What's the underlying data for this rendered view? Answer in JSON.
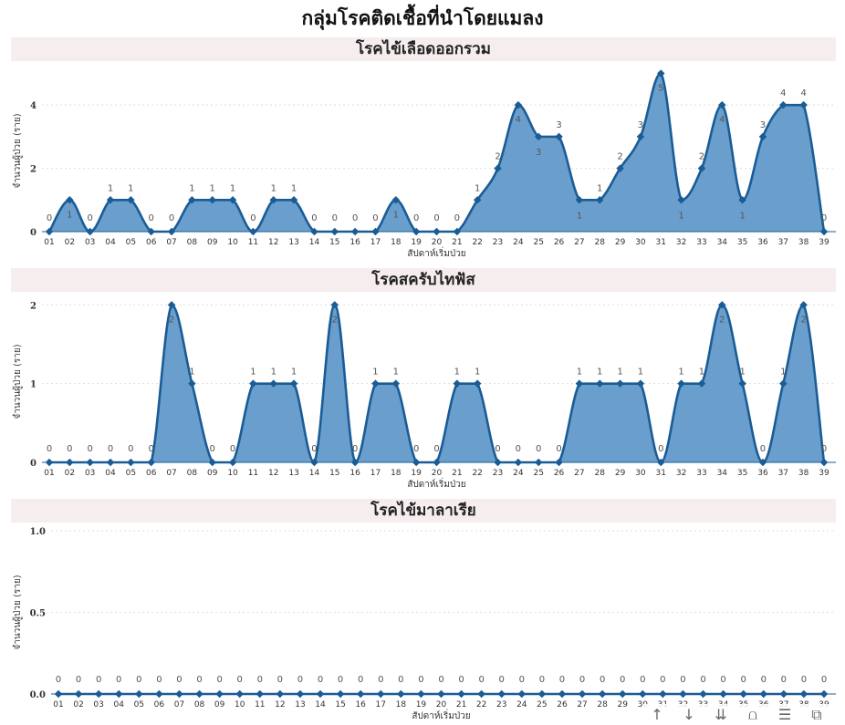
{
  "page": {
    "title": "กลุ่มโรคติดเชื้อที่นำโดยแมลง"
  },
  "colors": {
    "line": "#1a5c96",
    "fill": "#6a9fcd",
    "panel_bg": "#f6eeee"
  },
  "toolbar": {
    "icons": [
      "arrow-up-icon",
      "arrow-down-icon",
      "double-arrow-down-icon",
      "hierarchy-icon",
      "filter-icon",
      "focus-mode-icon"
    ]
  },
  "chart_data": [
    {
      "type": "area",
      "title": "โรคไข้เลือดออกรวม",
      "xlabel": "สัปดาห์เริ่มป่วย",
      "ylabel": "จำนวนผู้ป่วย (ราย)",
      "x": [
        "01",
        "02",
        "03",
        "04",
        "05",
        "06",
        "07",
        "08",
        "09",
        "10",
        "11",
        "12",
        "13",
        "14",
        "15",
        "16",
        "17",
        "18",
        "19",
        "20",
        "21",
        "22",
        "23",
        "24",
        "25",
        "26",
        "27",
        "28",
        "29",
        "30",
        "31",
        "32",
        "33",
        "34",
        "35",
        "36",
        "37",
        "38",
        "39"
      ],
      "values": [
        0,
        1,
        0,
        1,
        1,
        0,
        0,
        1,
        1,
        1,
        0,
        1,
        1,
        0,
        0,
        0,
        0,
        1,
        0,
        0,
        0,
        1,
        2,
        4,
        3,
        3,
        1,
        1,
        2,
        3,
        5,
        1,
        2,
        4,
        1,
        3,
        4,
        4,
        0
      ],
      "yticks": [
        0,
        2,
        4
      ],
      "ylim": [
        0,
        5.1
      ],
      "grid": true
    },
    {
      "type": "area",
      "title": "โรคสครับไทฟัส",
      "xlabel": "สัปดาห์เริ่มป่วย",
      "ylabel": "จำนวนผู้ป่วย (ราย)",
      "x": [
        "01",
        "02",
        "03",
        "04",
        "05",
        "06",
        "07",
        "08",
        "09",
        "10",
        "11",
        "12",
        "13",
        "14",
        "15",
        "16",
        "17",
        "18",
        "19",
        "20",
        "21",
        "22",
        "23",
        "24",
        "25",
        "26",
        "27",
        "28",
        "29",
        "30",
        "31",
        "32",
        "33",
        "34",
        "35",
        "36",
        "37",
        "38",
        "39"
      ],
      "values": [
        0,
        0,
        0,
        0,
        0,
        0,
        2,
        1,
        0,
        0,
        1,
        1,
        1,
        0,
        2,
        0,
        1,
        1,
        0,
        0,
        1,
        1,
        0,
        0,
        0,
        0,
        1,
        1,
        1,
        1,
        0,
        1,
        1,
        2,
        1,
        0,
        1,
        2,
        0
      ],
      "yticks": [
        0,
        1,
        2
      ],
      "ylim": [
        0,
        2.05
      ],
      "grid": true
    },
    {
      "type": "area",
      "title": "โรคไข้มาลาเรีย",
      "xlabel": "สัปดาห์เริ่มป่วย",
      "ylabel": "จำนวนผู้ป่วย (ราย)",
      "x": [
        "01",
        "02",
        "03",
        "04",
        "05",
        "06",
        "07",
        "08",
        "09",
        "10",
        "11",
        "12",
        "13",
        "14",
        "15",
        "16",
        "17",
        "18",
        "19",
        "20",
        "21",
        "22",
        "23",
        "24",
        "25",
        "26",
        "27",
        "28",
        "29",
        "30",
        "31",
        "32",
        "33",
        "34",
        "35",
        "36",
        "37",
        "38",
        "39"
      ],
      "values": [
        0,
        0,
        0,
        0,
        0,
        0,
        0,
        0,
        0,
        0,
        0,
        0,
        0,
        0,
        0,
        0,
        0,
        0,
        0,
        0,
        0,
        0,
        0,
        0,
        0,
        0,
        0,
        0,
        0,
        0,
        0,
        0,
        0,
        0,
        0,
        0,
        0,
        0,
        0
      ],
      "yticks": [
        "0.0",
        "0.5",
        "1.0"
      ],
      "ylim": [
        0,
        1
      ],
      "grid": true
    }
  ]
}
